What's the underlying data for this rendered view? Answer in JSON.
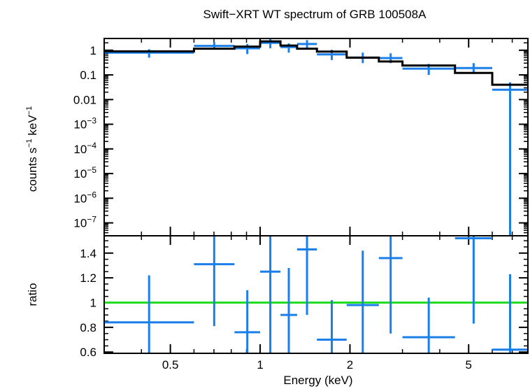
{
  "chart_data": {
    "title": "Swift−XRT WT spectrum of GRB 100508A",
    "xlabel": "Energy (keV)",
    "xscale": "log",
    "xlim": [
      0.3,
      7.9
    ],
    "x_tick_labels": [
      {
        "value": 0.5,
        "label": "0.5"
      },
      {
        "value": 1,
        "label": "1"
      },
      {
        "value": 2,
        "label": "2"
      },
      {
        "value": 5,
        "label": "5"
      }
    ],
    "x_minor_ticks": [
      0.3,
      0.4,
      0.6,
      0.7,
      0.8,
      0.9,
      3,
      4,
      6,
      7
    ],
    "panels": [
      {
        "id": "spectrum",
        "type": "scatter",
        "ylabel_parts": [
          {
            "text": "counts s",
            "sup": false
          },
          {
            "text": "−1",
            "sup": true
          },
          {
            "text": " keV",
            "sup": false
          },
          {
            "text": "−1",
            "sup": true
          }
        ],
        "yscale": "log",
        "ylim": [
          3e-08,
          3
        ],
        "y_tick_labels": [
          {
            "value": 1,
            "base": "1",
            "exp": ""
          },
          {
            "value": 0.1,
            "base": "0.1",
            "exp": ""
          },
          {
            "value": 0.01,
            "base": "0.01",
            "exp": ""
          },
          {
            "value": 0.001,
            "base": "10",
            "exp": "−3"
          },
          {
            "value": 0.0001,
            "base": "10",
            "exp": "−4"
          },
          {
            "value": 1e-05,
            "base": "10",
            "exp": "−5"
          },
          {
            "value": 1e-06,
            "base": "10",
            "exp": "−6"
          },
          {
            "value": 1e-07,
            "base": "10",
            "exp": "−7"
          }
        ],
        "series": [
          {
            "kind": "errorbars",
            "color": "#1a7fe8",
            "points": [
              {
                "x_lo": 0.3,
                "x_hi": 0.6,
                "y": 0.8,
                "y_lo": 0.5,
                "y_hi": 1.1
              },
              {
                "x_lo": 0.6,
                "x_hi": 0.82,
                "y": 1.5,
                "y_lo": 1.05,
                "y_hi": 2.2
              },
              {
                "x_lo": 0.82,
                "x_hi": 1.0,
                "y": 1.2,
                "y_lo": 0.7,
                "y_hi": 1.8
              },
              {
                "x_lo": 1.0,
                "x_hi": 1.17,
                "y": 2.0,
                "y_lo": 1.2,
                "y_hi": 2.9
              },
              {
                "x_lo": 1.17,
                "x_hi": 1.33,
                "y": 1.35,
                "y_lo": 0.8,
                "y_hi": 1.9
              },
              {
                "x_lo": 1.33,
                "x_hi": 1.55,
                "y": 1.8,
                "y_lo": 1.2,
                "y_hi": 2.6
              },
              {
                "x_lo": 1.55,
                "x_hi": 1.95,
                "y": 0.68,
                "y_lo": 0.4,
                "y_hi": 1.05
              },
              {
                "x_lo": 1.95,
                "x_hi": 2.5,
                "y": 0.5,
                "y_lo": 0.3,
                "y_hi": 0.8
              },
              {
                "x_lo": 2.5,
                "x_hi": 3.0,
                "y": 0.48,
                "y_lo": 0.3,
                "y_hi": 0.75
              },
              {
                "x_lo": 3.0,
                "x_hi": 4.5,
                "y": 0.18,
                "y_lo": 0.1,
                "y_hi": 0.28
              },
              {
                "x_lo": 4.5,
                "x_hi": 6.0,
                "y": 0.19,
                "y_lo": 0.11,
                "y_hi": 0.3
              },
              {
                "x_lo": 6.0,
                "x_hi": 7.9,
                "y": 0.025,
                "y_lo": 3e-08,
                "y_hi": 0.05
              }
            ]
          },
          {
            "kind": "model-step",
            "color": "#000000",
            "edges": [
              0.3,
              0.6,
              0.82,
              1.0,
              1.17,
              1.33,
              1.55,
              1.95,
              2.5,
              3.0,
              4.5,
              6.0,
              7.9
            ],
            "values": [
              0.9,
              1.15,
              1.4,
              2.3,
              1.55,
              1.15,
              0.88,
              0.5,
              0.35,
              0.24,
              0.12,
              0.04
            ]
          }
        ]
      },
      {
        "id": "ratio",
        "type": "scatter",
        "ylabel": "ratio",
        "yscale": "linear",
        "ylim": [
          0.59,
          1.54
        ],
        "y_tick_labels": [
          {
            "value": 0.6,
            "label": "0.6"
          },
          {
            "value": 0.8,
            "label": "0.8"
          },
          {
            "value": 1.0,
            "label": "1"
          },
          {
            "value": 1.2,
            "label": "1.2"
          },
          {
            "value": 1.4,
            "label": "1.4"
          }
        ],
        "y_minor_step": 0.05,
        "reference_line": {
          "y": 1.0,
          "color": "#22dd22"
        },
        "series": [
          {
            "kind": "errorbars",
            "color": "#1a7fe8",
            "points": [
              {
                "x_lo": 0.3,
                "x_hi": 0.6,
                "y": 0.84,
                "y_lo": 0.46,
                "y_hi": 1.22
              },
              {
                "x_lo": 0.6,
                "x_hi": 0.82,
                "y": 1.31,
                "y_lo": 0.81,
                "y_hi": 1.6
              },
              {
                "x_lo": 0.82,
                "x_hi": 1.0,
                "y": 0.76,
                "y_lo": 0.4,
                "y_hi": 1.1
              },
              {
                "x_lo": 1.0,
                "x_hi": 1.17,
                "y": 1.25,
                "y_lo": 0.5,
                "y_hi": 1.6
              },
              {
                "x_lo": 1.17,
                "x_hi": 1.33,
                "y": 0.9,
                "y_lo": 0.5,
                "y_hi": 1.28
              },
              {
                "x_lo": 1.33,
                "x_hi": 1.55,
                "y": 1.43,
                "y_lo": 0.9,
                "y_hi": 1.6
              },
              {
                "x_lo": 1.55,
                "x_hi": 1.95,
                "y": 0.7,
                "y_lo": 0.4,
                "y_hi": 1.02
              },
              {
                "x_lo": 1.95,
                "x_hi": 2.5,
                "y": 0.98,
                "y_lo": 0.5,
                "y_hi": 1.42
              },
              {
                "x_lo": 2.5,
                "x_hi": 3.0,
                "y": 1.36,
                "y_lo": 0.75,
                "y_hi": 1.6
              },
              {
                "x_lo": 3.0,
                "x_hi": 4.5,
                "y": 0.72,
                "y_lo": 0.4,
                "y_hi": 1.04
              },
              {
                "x_lo": 4.5,
                "x_hi": 6.0,
                "y": 1.52,
                "y_lo": 0.83,
                "y_hi": 1.6
              },
              {
                "x_lo": 6.0,
                "x_hi": 7.9,
                "y": 0.62,
                "y_lo": 0.4,
                "y_hi": 1.23
              }
            ]
          }
        ]
      }
    ]
  }
}
